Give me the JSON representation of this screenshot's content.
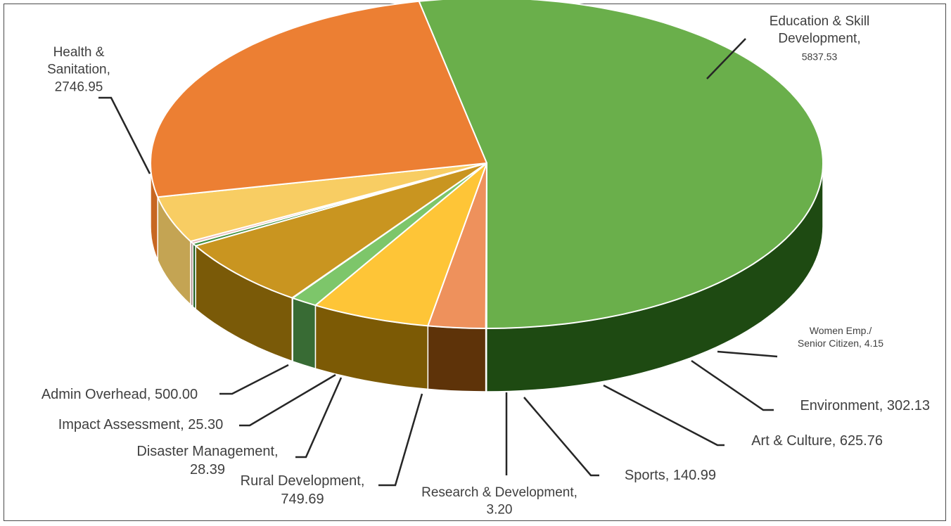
{
  "chart_data": {
    "type": "pie",
    "style": "3d-exploded",
    "legend": "none",
    "categories": [
      "Education & Skill Development",
      "Women Emp./ Senior Citizen",
      "Environment",
      "Art & Culture",
      "Sports",
      "Research & Development",
      "Rural Development",
      "Disaster Management",
      "Impact Assessment",
      "Admin Overhead",
      "Health & Sanitation"
    ],
    "values": [
      5837.53,
      4.15,
      302.13,
      625.76,
      140.99,
      3.2,
      749.69,
      28.39,
      25.3,
      500.0,
      2746.95
    ],
    "colors": [
      "#6aaf4b",
      "#c9d98f",
      "#ee915c",
      "#fec537",
      "#7dc66a",
      "#bfbfbf",
      "#c99520",
      "#3f8f3f",
      "#e9b9b9",
      "#f8cd63",
      "#ec7f33"
    ],
    "side_colors": [
      "#1e4a12",
      "#6d7a40",
      "#5e3309",
      "#7c5a05",
      "#386b34",
      "#5a5a5a",
      "#7a5a08",
      "#1e5e1e",
      "#b08f8f",
      "#c4a453",
      "#c76722"
    ],
    "labels": [
      {
        "lines": [
          "Education & Skill",
          "Development,",
          "5837.53"
        ]
      },
      {
        "lines": [
          "Women Emp./",
          "Senior Citizen, 4.15"
        ]
      },
      {
        "lines": [
          "Environment, 302.13"
        ]
      },
      {
        "lines": [
          "Art & Culture, 625.76"
        ]
      },
      {
        "lines": [
          "Sports, 140.99"
        ]
      },
      {
        "lines": [
          "Research & Development,",
          "3.20"
        ]
      },
      {
        "lines": [
          "Rural Development,",
          "749.69"
        ]
      },
      {
        "lines": [
          "Disaster Management,",
          "28.39"
        ]
      },
      {
        "lines": [
          "Impact Assessment, 25.30"
        ]
      },
      {
        "lines": [
          "Admin Overhead, 500.00"
        ]
      },
      {
        "lines": [
          "Health &",
          "Sanitation,",
          "2746.95"
        ]
      }
    ]
  }
}
